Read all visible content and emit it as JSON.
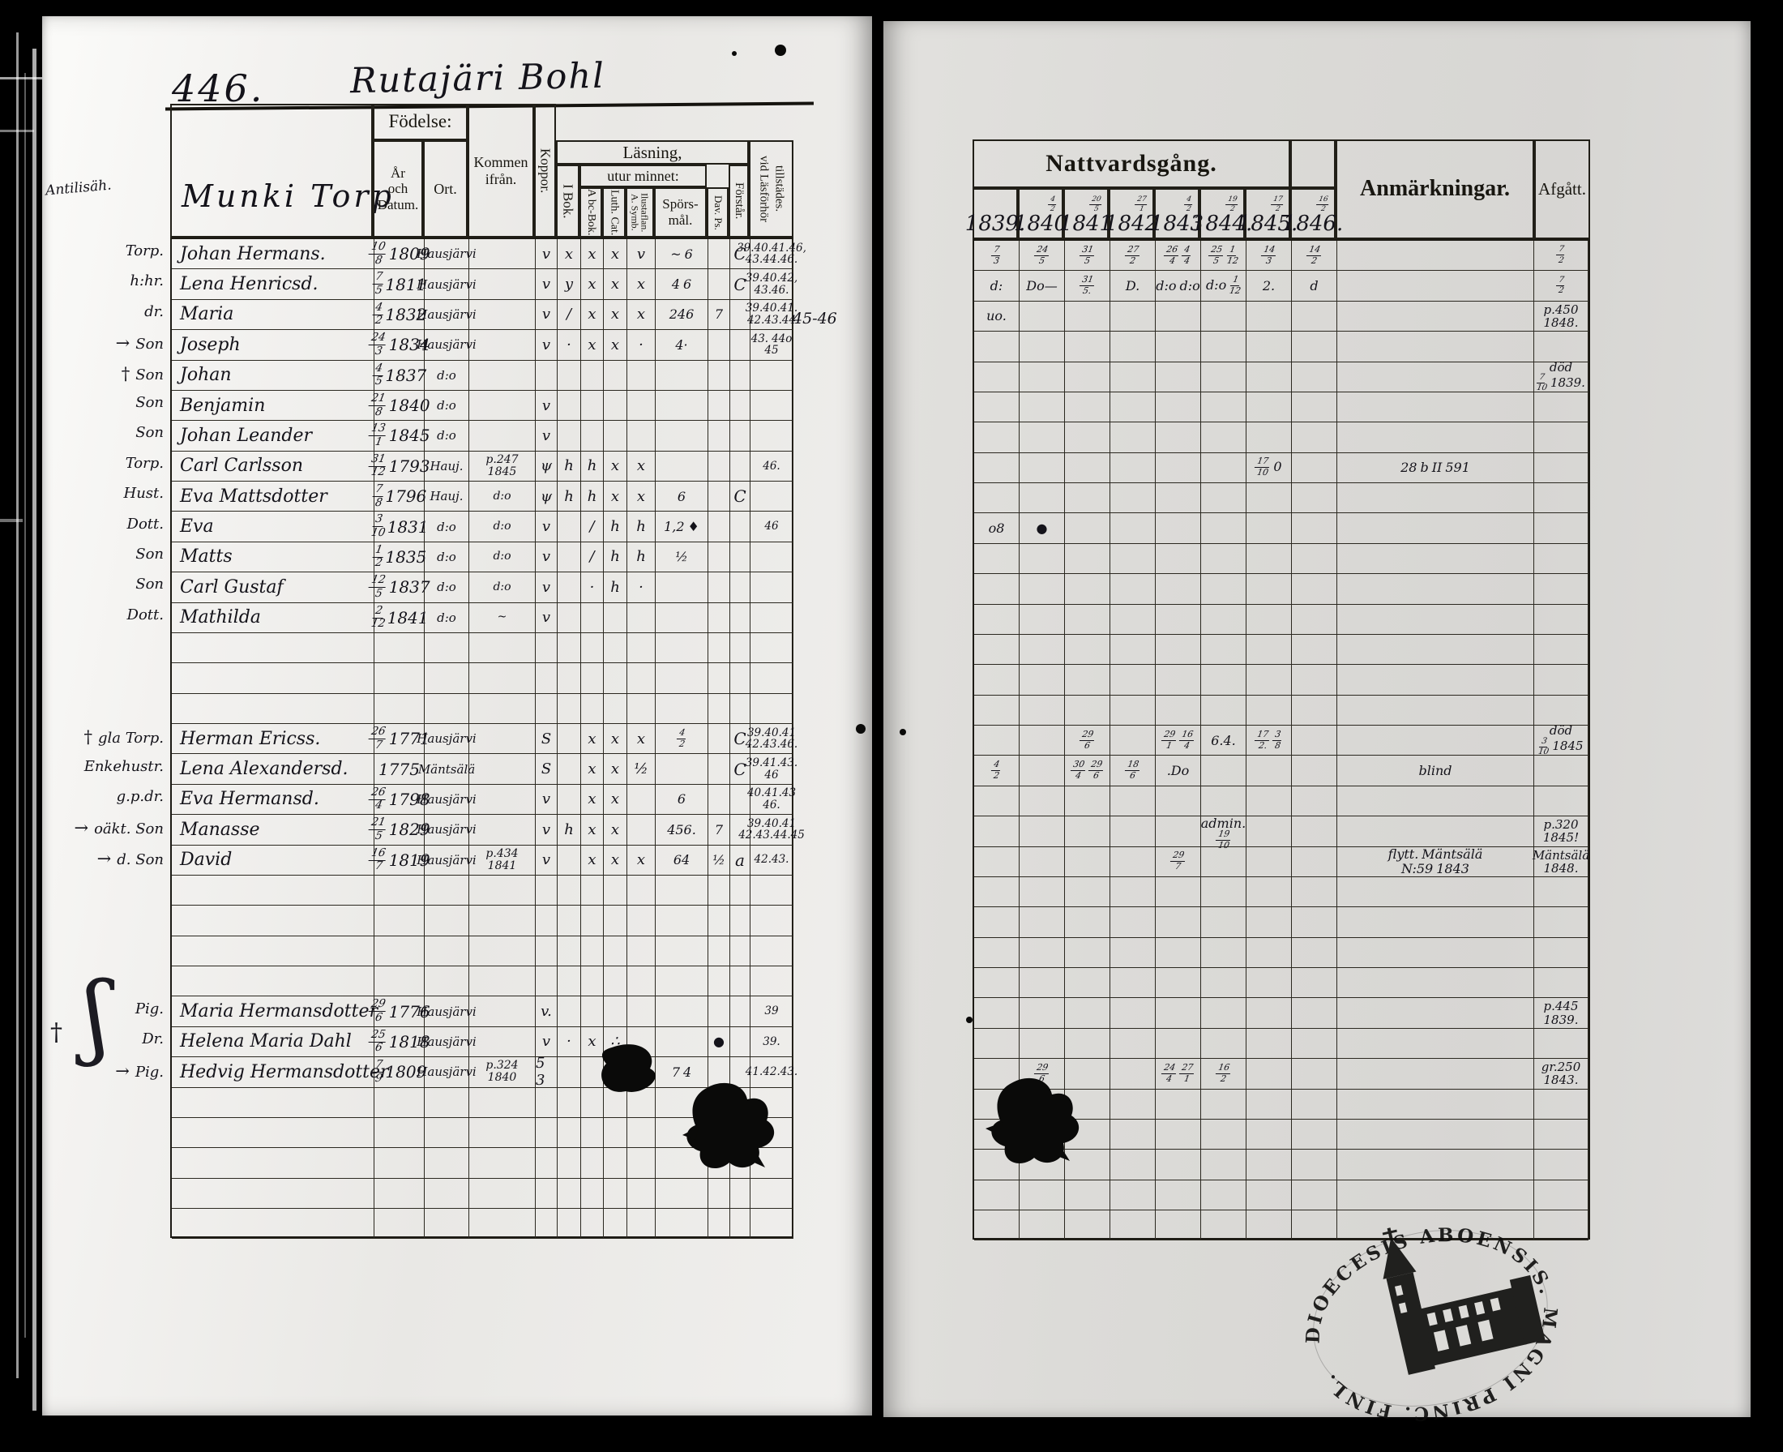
{
  "page": {
    "number": "446.",
    "title": "Rutajäri Bohl"
  },
  "left_table": {
    "section_title": "Munki Torp",
    "margin_note": "Antilisäh.",
    "headers": {
      "fodelse": "Födelse:",
      "ar": "År\noch\nDatum.",
      "ort": "Ort.",
      "kommen": "Kommen\nifrån.",
      "koppor": "Koppor.",
      "lasning": "Läsning,",
      "ibok": "I Bok.",
      "utur": "utur minnet:",
      "abc": "A bc-Bok.",
      "luth": "Luth. Cat.",
      "symb": "A. Symb. Ilustaflan.",
      "spors": "Spörs-\nmål.",
      "davps": "Dav. Ps.",
      "forstar": "Förstår.",
      "vid": "vid Läsförhör tillstädes."
    },
    "rows": [
      {
        "m": "Torp.",
        "n": "Johan Hermans.",
        "d": "10/8",
        "y": "1809",
        "o": "Hausjärvi",
        "kp": "v",
        "rm": [
          "x",
          "x",
          "x",
          "v"
        ],
        "sp": "~ 6",
        "fo": "C",
        "vid": "39.40.41.46,|43.44.46."
      },
      {
        "m": "h:hr.",
        "n": "Lena Henricsd.",
        "d": "7/5",
        "y": "1811",
        "o": "Hausjärvi",
        "kp": "v",
        "rm": [
          "y",
          "x",
          "x",
          "x"
        ],
        "sp": "4 6",
        "fo": "C",
        "vid": "39.40.42,|43.46."
      },
      {
        "m": "dr.",
        "n": "Maria",
        "d": "4/2",
        "y": "1832",
        "o": "Hausjärvi",
        "kp": "v",
        "rm": [
          "/",
          "x",
          "x",
          "x"
        ],
        "sp": "246",
        "dp": "7",
        "vid": "39.40.41.|42.43.44",
        "ex": "45-46"
      },
      {
        "m": "Son",
        "pre": "→",
        "n": "Joseph",
        "d": "24/3",
        "y": "1834",
        "o": "Hausjärvi",
        "kp": "v",
        "rm": [
          "·",
          "x",
          "x",
          "·"
        ],
        "sp": "4·",
        "vid": "43. 44o|45"
      },
      {
        "m": "Son",
        "pre": "†",
        "n": "Johan",
        "d": "4/5",
        "y": "1837",
        "o": "d:o"
      },
      {
        "m": "Son",
        "n": "Benjamin",
        "d": "21/8",
        "y": "1840",
        "o": "d:o",
        "kp": "v"
      },
      {
        "m": "Son",
        "n": "Johan Leander",
        "d": "13/1",
        "y": "1845",
        "o": "d:o",
        "kp": "v"
      },
      {
        "m": "Torp.",
        "n": "Carl Carlsson",
        "d": "31/12",
        "y": "1793",
        "o": "Hauj.",
        "k": "p.247|1845",
        "kp": "ψ",
        "rm": [
          "h",
          "h",
          "x",
          "x"
        ],
        "vid": "46."
      },
      {
        "m": "Hust.",
        "n": "Eva Mattsdotter",
        "d": "7/8",
        "y": "1796",
        "o": "Hauj.",
        "k": "d:o",
        "kp": "ψ",
        "rm": [
          "h",
          "h",
          "x",
          "x"
        ],
        "sp": "6",
        "fo": "C"
      },
      {
        "m": "Dott.",
        "n": "Eva",
        "d": "3/10",
        "y": "1831",
        "o": "d:o",
        "k": "d:o",
        "kp": "v",
        "rm": [
          "",
          "/",
          "h",
          "h"
        ],
        "sp": "1,2 ♦",
        "vid": "46"
      },
      {
        "m": "Son",
        "n": "Matts",
        "d": "1/2",
        "y": "1835",
        "o": "d:o",
        "k": "d:o",
        "kp": "v",
        "rm": [
          "",
          "/",
          "h",
          "h"
        ],
        "sp": "½"
      },
      {
        "m": "Son",
        "n": "Carl Gustaf",
        "d": "12/5",
        "y": "1837",
        "o": "d:o",
        "k": "d:o",
        "kp": "v",
        "rm": [
          "",
          "·",
          "h",
          "·"
        ]
      },
      {
        "m": "Dott.",
        "n": "Mathilda",
        "d": "2/12",
        "y": "1841",
        "o": "d:o",
        "k": "~",
        "kp": "v"
      },
      {},
      {},
      {},
      {
        "m": "gla Torp.",
        "pre": "†",
        "n": "Herman Ericss.",
        "d": "26/7",
        "y": "1771",
        "o": "Hausjärvi",
        "kp": "S",
        "rm": [
          "",
          "x",
          "x",
          "x"
        ],
        "sp": "4/2",
        "fo": "C",
        "vid": "39.40.41|42.43.46."
      },
      {
        "m": "Enkehustr.",
        "n": "Lena Alexandersd.",
        "d": "",
        "y": "1775",
        "o": "Mäntsälä",
        "kp": "S",
        "rm": [
          "",
          "x",
          "x",
          "½"
        ],
        "fo": "C",
        "vid": "39.41.43.|46"
      },
      {
        "m": "g.p.dr.",
        "n": "Eva Hermansd.",
        "d": "26/4",
        "y": "1798",
        "o": "Hausjärvi",
        "kp": "v",
        "rm": [
          "",
          "x",
          "x",
          ""
        ],
        "sp": "6",
        "vid": "40.41.43|46."
      },
      {
        "m": "oäkt. Son",
        "pre": "→",
        "n": "Manasse",
        "d": "21/5",
        "y": "1829",
        "o": "Hausjärvi",
        "kp": "v",
        "rm": [
          "h",
          "x",
          "x",
          ""
        ],
        "sp": "456.",
        "dp": "7",
        "vid": "39.40.41|42.43.44.45"
      },
      {
        "m": "d. Son",
        "pre": "→",
        "n": "David",
        "d": "16/7",
        "y": "1819",
        "o": "Hausjärvi",
        "k": "p.434|1841",
        "kp": "v",
        "rm": [
          "",
          "x",
          "x",
          "x"
        ],
        "sp": "64",
        "dp": "½",
        "fo": "a",
        "vid": "42.43."
      },
      {},
      {},
      {},
      {},
      {
        "m": "Pig.",
        "n": "Maria Hermansdotter",
        "d": "29/6",
        "y": "1776",
        "o": "Hausjärvi",
        "kp": "v.",
        "vid": "39"
      },
      {
        "m": "Dr.",
        "n": "Helena Maria Dahl",
        "d": "25/6",
        "y": "1818",
        "o": "Hausjärvi",
        "kp": "v",
        "rm": [
          "·",
          "x",
          "∴",
          ""
        ],
        "dp": "●",
        "vid": "39."
      },
      {
        "m": "Pig.",
        "pre": "→",
        "n": "Hedvig Hermansdotter",
        "d": "7/9",
        "y": "1809",
        "o": "Hausjärvi",
        "k": "p.324|1840",
        "kp": "5 3",
        "rm": [
          "",
          "",
          "x",
          ""
        ],
        "sp": "7 4",
        "vid": "41.42.43."
      },
      {},
      {},
      {},
      {},
      {}
    ]
  },
  "right_table": {
    "header": "Nattvardsgång.",
    "anm_header": "Anmärkningar.",
    "afgatt_header": "Afgått.",
    "years": [
      {
        "y": "1839.",
        "f": ""
      },
      {
        "y": "1840",
        "f": "4/2"
      },
      {
        "y": "1841",
        "f": "20/5"
      },
      {
        "y": "1842",
        "f": "27/1"
      },
      {
        "y": "1843",
        "f": "4/2"
      },
      {
        "y": "1844.",
        "f": "19/2"
      },
      {
        "y": "1845.",
        "f": "17/2"
      },
      {
        "y": "1846.",
        "f": "16/2"
      }
    ],
    "rows": [
      {
        "cells": [
          "7/3",
          "24/5",
          "31/5",
          "27/2",
          "26/4 4/4",
          "25/5 1/12",
          "14/3",
          "14/2"
        ],
        "afg": "7/2"
      },
      {
        "cells": [
          "d:",
          "Do—",
          "31/5.",
          "D.",
          "d:o d:o",
          "d:o 1/12",
          "2.",
          "d"
        ],
        "afg": "7/2"
      },
      {
        "cells": [
          "uo.",
          "",
          "",
          "",
          "",
          "",
          "",
          ""
        ],
        "afg": "p.450|1848."
      },
      {},
      {
        "afg": "död|7/10 1839."
      },
      {},
      {},
      {
        "cells": [
          "",
          "",
          "",
          "",
          "",
          "",
          "17/10 0",
          ""
        ],
        "anm": "28 b II 591"
      },
      {},
      {
        "cells": [
          "o8",
          "●",
          "",
          "",
          "",
          "",
          "",
          ""
        ]
      },
      {},
      {},
      {},
      {},
      {},
      {},
      {
        "cells": [
          "",
          "",
          "29/6",
          "",
          "29/1 16/4",
          "6.4.",
          "17/2. 3/8",
          ""
        ],
        "afg": "död|3/10 1845"
      },
      {
        "cells": [
          "4/2",
          "",
          "30/4 29/6",
          "18/6",
          ".Do",
          "",
          "",
          ""
        ],
        "anm": "blind"
      },
      {},
      {
        "cells": [
          "",
          "",
          "",
          "",
          "",
          "admin.|19/10",
          "",
          ""
        ],
        "afg": "p.320|1845!"
      },
      {
        "cells": [
          "",
          "",
          "",
          "",
          "29/7",
          "",
          "",
          ""
        ],
        "anm": "flytt. Mäntsälä|N:59 1843",
        "afg": "Mäntsälä|1848."
      },
      {},
      {},
      {},
      {},
      {
        "afg": "p.445|1839."
      },
      {},
      {
        "cells": [
          "",
          "29/6",
          "",
          "",
          "24/4 27/1",
          "16/2",
          "",
          ""
        ],
        "afg": "gr.250|1843."
      },
      {},
      {},
      {},
      {},
      {}
    ]
  },
  "stamp": {
    "text": "DIOECESIS ABOENSIS. MAGNI PRINC. FINL."
  }
}
